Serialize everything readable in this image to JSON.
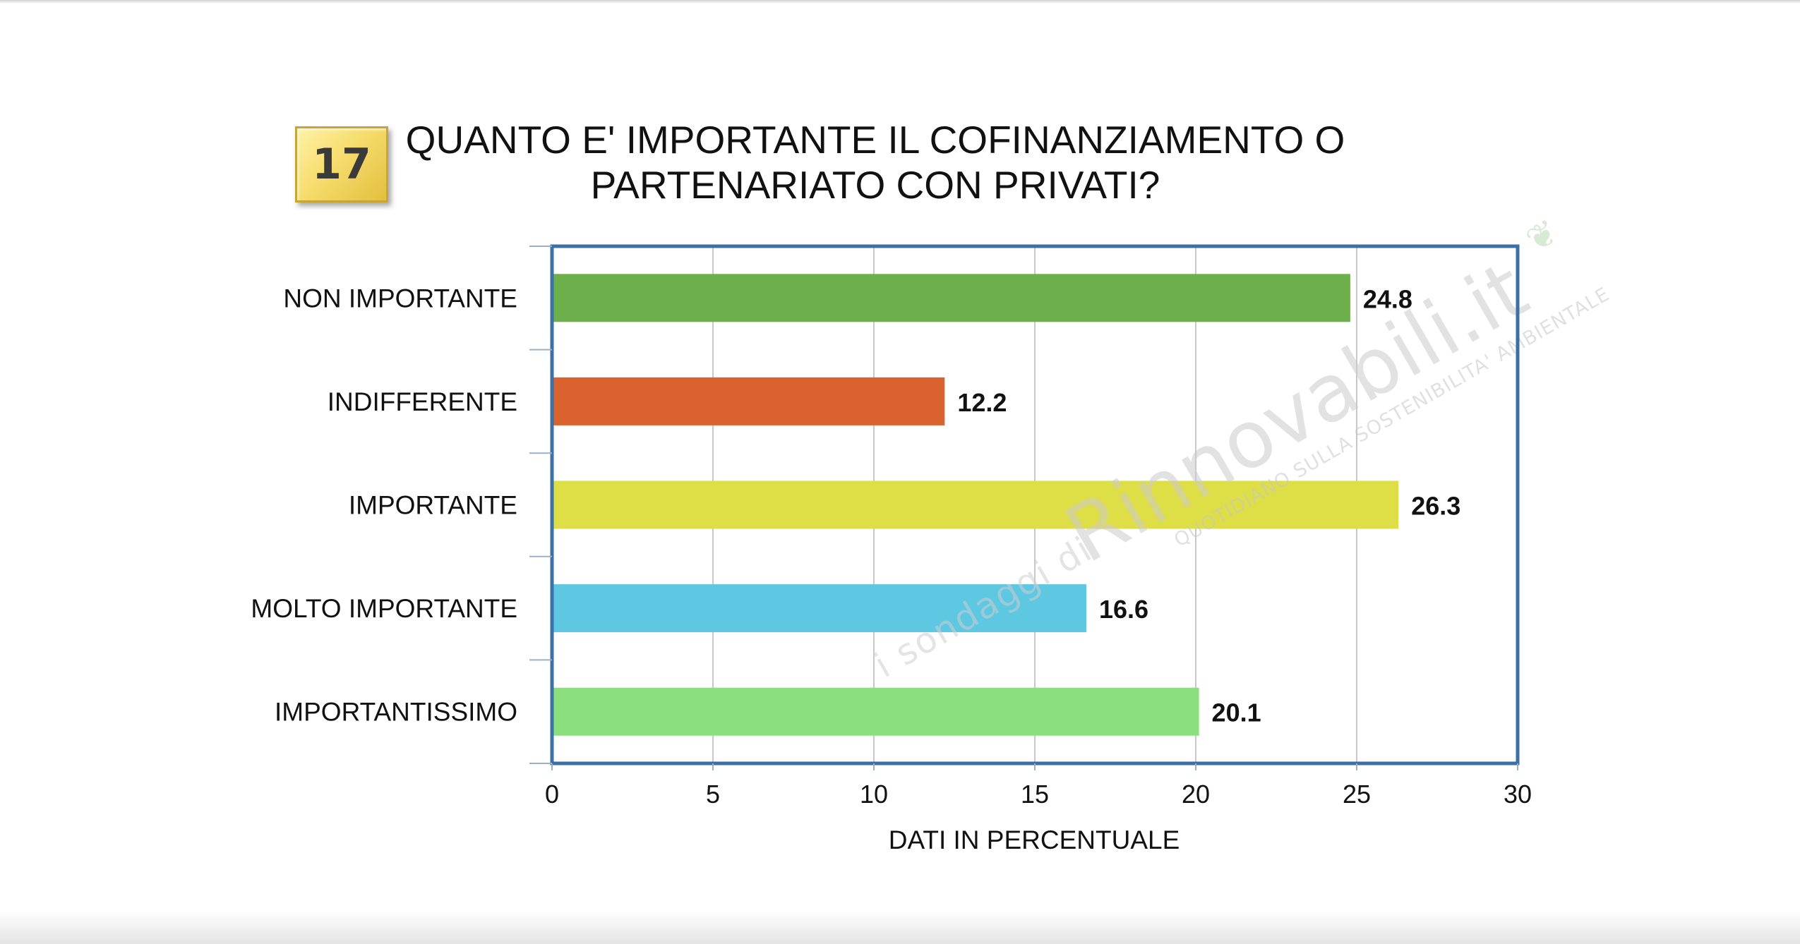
{
  "badge": {
    "number": "17"
  },
  "chart_data": {
    "type": "bar",
    "orientation": "horizontal",
    "title": "QUANTO E' IMPORTANTE IL COFINANZIAMENTO O PARTENARIATO CON PRIVATI?",
    "xlabel": "DATI IN PERCENTUALE",
    "ylabel": "",
    "xlim": [
      0,
      30
    ],
    "xticks": [
      0,
      5,
      10,
      15,
      20,
      25,
      30
    ],
    "categories": [
      "NON IMPORTANTE",
      "INDIFFERENTE",
      "IMPORTANTE",
      "MOLTO IMPORTANTE",
      "IMPORTANTISSIMO"
    ],
    "values": [
      24.8,
      12.2,
      26.3,
      16.6,
      20.1
    ],
    "data_labels": [
      "24.8",
      "12.2",
      "26.3",
      "16.6",
      "20.1"
    ],
    "colors": [
      "#6daf4a",
      "#d9622e",
      "#dede47",
      "#5ec7e2",
      "#8ae07c"
    ],
    "grid": "vertical",
    "legend": "none"
  },
  "watermark": {
    "prefix": "i sondaggi di",
    "brand": "Rinnovabili.it",
    "tagline": "QUOTIDIANO SULLA SOSTENIBILITA' AMBIENTALE"
  }
}
